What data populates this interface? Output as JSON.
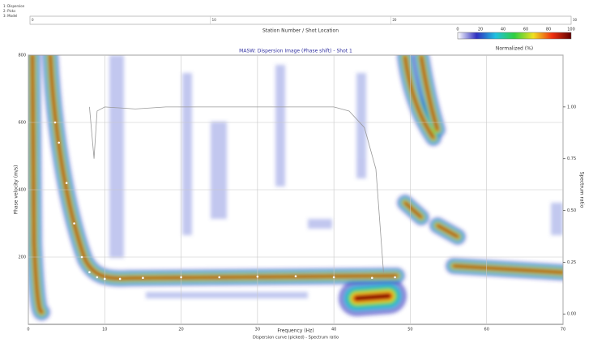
{
  "legend_lines": [
    "1: Dispersion",
    "2: Picks",
    "3: Model"
  ],
  "station_axis": {
    "label": "Station Number / Shot Location",
    "ticks": [
      0,
      10,
      20,
      30
    ],
    "xlim": [
      0,
      30
    ]
  },
  "chart_data": {
    "type": "dispersion",
    "title": "MASW: Dispersion Image (Phase shift) - Shot 1",
    "x_label": "Frequency (Hz)",
    "y_label": "Phase velocity (m/s)",
    "y2_label": "Spectrum ratio",
    "caption": "Dispersion curve (picked) - Spectrum ratio",
    "xlim": [
      0,
      70
    ],
    "xticks": [
      0,
      10,
      20,
      30,
      40,
      50,
      60,
      70
    ],
    "ylim": [
      0,
      800
    ],
    "yticks": [
      200,
      400,
      600,
      800
    ],
    "y2lim": [
      -0.05,
      1.25
    ],
    "y2ticks": [
      {
        "value": 0,
        "label": "0.00"
      },
      {
        "value": 0.25,
        "label": "0.25"
      },
      {
        "value": 0.5,
        "label": "0.50"
      },
      {
        "value": 0.75,
        "label": "0.75"
      },
      {
        "value": 1,
        "label": "1.00"
      }
    ],
    "grid": true,
    "colorbar": {
      "label": "Normalized (%)",
      "ticks": [
        0,
        20,
        40,
        60,
        80,
        100
      ],
      "colors": [
        "#ffffff",
        "#3030c0",
        "#20c0e0",
        "#30d040",
        "#f0e020",
        "#f03010",
        "#600000"
      ]
    },
    "series": [
      {
        "color": "#ffffff",
        "x": [
          3.5,
          4,
          5,
          6,
          7,
          8,
          9,
          10,
          12,
          15,
          20,
          25,
          30,
          35,
          40,
          45,
          48
        ],
        "values": [
          600,
          540,
          420,
          300,
          200,
          155,
          140,
          135,
          135,
          138,
          140,
          140,
          142,
          143,
          140,
          138,
          140
        ]
      },
      {
        "color": "#999999",
        "axis": "y2",
        "x": [
          8,
          8.6,
          9,
          10,
          14,
          18,
          25,
          30,
          35,
          40,
          42,
          44,
          45.5,
          46.5
        ],
        "values": [
          1.0,
          0.75,
          0.98,
          1.0,
          0.99,
          1.0,
          1.0,
          1.0,
          1.0,
          1.0,
          0.98,
          0.9,
          0.7,
          0.2
        ]
      }
    ]
  }
}
